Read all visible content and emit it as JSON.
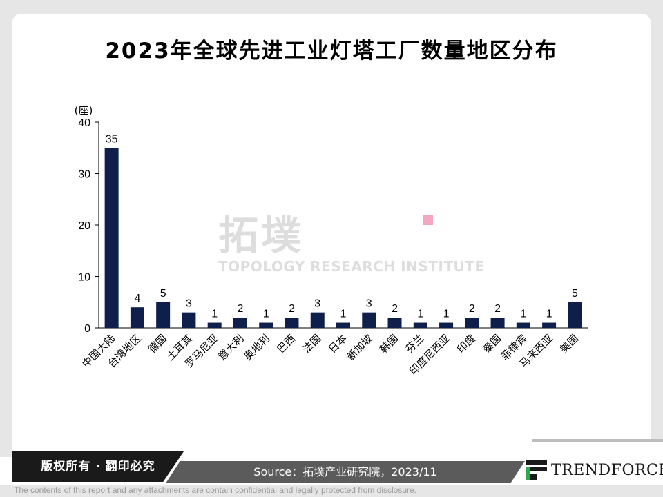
{
  "title": "2023年全球先进工业灯塔工厂数量地区分布",
  "footer": {
    "copyright": "版权所有 · 翻印必究",
    "source": "Source：拓墣产业研究院，2023/11",
    "logo_text": "TRENDFORCE",
    "disclaimer": "The contents of this report and any attachments are contain confidential and legally protected from disclosure."
  },
  "watermark": {
    "main": "拓墣",
    "sub": "TOPOLOGY RESEARCH INSTITUTE"
  },
  "chart_data": {
    "type": "bar",
    "unit_label": "(座)",
    "categories": [
      "中国大陆",
      "台湾地区",
      "德国",
      "土耳其",
      "罗马尼亚",
      "意大利",
      "奥地利",
      "巴西",
      "法国",
      "日本",
      "新加坡",
      "韩国",
      "芬兰",
      "印度尼西亚",
      "印度",
      "泰国",
      "菲律宾",
      "马来西亚",
      "美国"
    ],
    "values": [
      35,
      4,
      5,
      3,
      1,
      2,
      1,
      2,
      3,
      1,
      3,
      2,
      1,
      1,
      2,
      2,
      1,
      1,
      5
    ],
    "ylim": [
      0,
      40
    ],
    "yticks": [
      0,
      10,
      20,
      30,
      40
    ],
    "bar_color": "#0d1f4a",
    "grid": false
  }
}
